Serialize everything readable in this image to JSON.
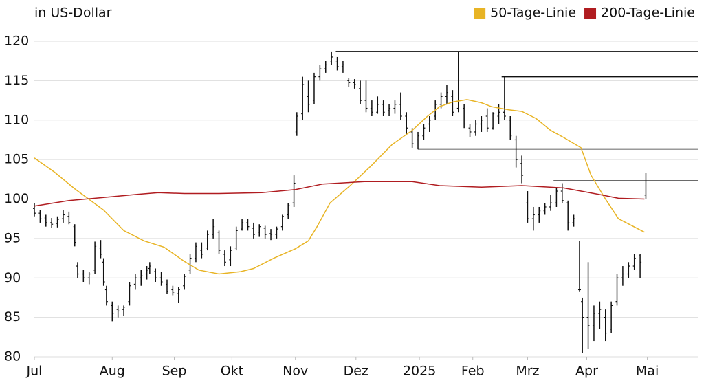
{
  "chart_data": {
    "type": "ohlc",
    "unit_label": "in US-Dollar",
    "ylim": [
      80,
      120
    ],
    "yticks": [
      80,
      85,
      90,
      95,
      100,
      105,
      110,
      115,
      120
    ],
    "grid": true,
    "xlim": [
      0,
      230
    ],
    "xticks": [
      {
        "value": 0,
        "label": "Jul"
      },
      {
        "value": 27,
        "label": "Aug"
      },
      {
        "value": 48.5,
        "label": "Sep"
      },
      {
        "value": 68.5,
        "label": "Okt"
      },
      {
        "value": 90.5,
        "label": "Nov"
      },
      {
        "value": 111.5,
        "label": "Dez"
      },
      {
        "value": 133.5,
        "label": "2025"
      },
      {
        "value": 152,
        "label": "Feb"
      },
      {
        "value": 171,
        "label": "Mrz"
      },
      {
        "value": 191.5,
        "label": "Apr"
      },
      {
        "value": 212.5,
        "label": "Mai"
      }
    ],
    "bar_color": "#111111",
    "legend": "top-right",
    "bars": [
      [
        0,
        98.8,
        99.5,
        97.8,
        98.2
      ],
      [
        2,
        98.2,
        98.6,
        97,
        97.5
      ],
      [
        4,
        97.6,
        98,
        96.5,
        97
      ],
      [
        6,
        97,
        97.6,
        96.3,
        96.8
      ],
      [
        8,
        96.9,
        97.8,
        96.4,
        97.4
      ],
      [
        10,
        97.5,
        98.6,
        97,
        98
      ],
      [
        12,
        97.8,
        98.4,
        96.8,
        97
      ],
      [
        14,
        96.5,
        96.8,
        94,
        94.5
      ],
      [
        15,
        91.5,
        92,
        90,
        90.5
      ],
      [
        17,
        90.5,
        91,
        89.5,
        90
      ],
      [
        19,
        90,
        90.8,
        89.2,
        90.5
      ],
      [
        21,
        91,
        94.6,
        90.5,
        94
      ],
      [
        23,
        93.8,
        94.8,
        92.5,
        93
      ],
      [
        24,
        92,
        92.5,
        89,
        89.5
      ],
      [
        25,
        88.5,
        89,
        86.5,
        87
      ],
      [
        27,
        86.5,
        87,
        84.5,
        85.5
      ],
      [
        29,
        86,
        86.5,
        85,
        85.8
      ],
      [
        31,
        86,
        86.5,
        85.2,
        86.3
      ],
      [
        33,
        87,
        89.5,
        86.5,
        89
      ],
      [
        35,
        89.2,
        90.5,
        88.5,
        90
      ],
      [
        37,
        90,
        91,
        89,
        90.3
      ],
      [
        39,
        90.5,
        91.5,
        89.8,
        91
      ],
      [
        40,
        91.2,
        92,
        90.5,
        91.5
      ],
      [
        42,
        90.8,
        91.2,
        89.5,
        90
      ],
      [
        44,
        90,
        90.8,
        89,
        89.5
      ],
      [
        46,
        89.2,
        89.8,
        88,
        88.3
      ],
      [
        48,
        88.5,
        89,
        87.8,
        88.2
      ],
      [
        50,
        88,
        88.8,
        86.8,
        88.5
      ],
      [
        52,
        89,
        90.5,
        88.5,
        90.2
      ],
      [
        54,
        91,
        93,
        90.5,
        92.5
      ],
      [
        56,
        92.5,
        94.5,
        92,
        94
      ],
      [
        58,
        93.5,
        94.5,
        92.5,
        93
      ],
      [
        60,
        93.8,
        96,
        93.5,
        95.5
      ],
      [
        62,
        95.5,
        97.5,
        95,
        96.5
      ],
      [
        64,
        95.8,
        96,
        93,
        93.5
      ],
      [
        66,
        93,
        93.5,
        91.5,
        92
      ],
      [
        68,
        92.3,
        94,
        91.5,
        93.5
      ],
      [
        70,
        93.8,
        96.5,
        93.5,
        96
      ],
      [
        72,
        96.2,
        97.5,
        96,
        97
      ],
      [
        74,
        97,
        97.5,
        96,
        96.5
      ],
      [
        76,
        96.3,
        97,
        95,
        95.5
      ],
      [
        78,
        95.8,
        96.8,
        95.2,
        96.5
      ],
      [
        80,
        96.3,
        96.6,
        95,
        95.5
      ],
      [
        82,
        95.6,
        96.2,
        94.8,
        95.5
      ],
      [
        84,
        95.5,
        96.5,
        95,
        96.2
      ],
      [
        86,
        96.5,
        98,
        96,
        97.8
      ],
      [
        88,
        98,
        99.5,
        97.5,
        99.2
      ],
      [
        90,
        99.5,
        103,
        99,
        102
      ],
      [
        91,
        108.5,
        111,
        108,
        110.5
      ],
      [
        93,
        110.8,
        115.5,
        110,
        114.5
      ],
      [
        95,
        113,
        115,
        111,
        112
      ],
      [
        97,
        112.5,
        116,
        112,
        115.5
      ],
      [
        99,
        115.5,
        117,
        115,
        116.5
      ],
      [
        101,
        116.5,
        117.5,
        116,
        117
      ],
      [
        103,
        117.5,
        118.7,
        117,
        118
      ],
      [
        105,
        117.5,
        118,
        116.3,
        116.8
      ],
      [
        107,
        116.8,
        117.5,
        116,
        117
      ],
      [
        109,
        115,
        115.3,
        114.2,
        114.8
      ],
      [
        111,
        114.8,
        115.2,
        114,
        114.5
      ],
      [
        113,
        114,
        115,
        112,
        112.5
      ],
      [
        115,
        112.5,
        115,
        111,
        111.5
      ],
      [
        117,
        111.5,
        112.5,
        110.5,
        111
      ],
      [
        119,
        111,
        113,
        110.8,
        112
      ],
      [
        121,
        112,
        112.5,
        110.5,
        111
      ],
      [
        123,
        111.2,
        112,
        110.5,
        111.5
      ],
      [
        125,
        111.5,
        112.5,
        110.8,
        112
      ],
      [
        127,
        112,
        113.5,
        110,
        110.5
      ],
      [
        129,
        110.5,
        111,
        108.2,
        109
      ],
      [
        131,
        108.5,
        109,
        106.5,
        107
      ],
      [
        133,
        107.5,
        108.5,
        106.3,
        108
      ],
      [
        135,
        108,
        109.5,
        107.5,
        109
      ],
      [
        137,
        109.5,
        110.5,
        108.5,
        110
      ],
      [
        139,
        110.5,
        112.5,
        110,
        112
      ],
      [
        141,
        112,
        113.5,
        111.5,
        113
      ],
      [
        143,
        113,
        114.5,
        112,
        113.5
      ],
      [
        145,
        113,
        113.8,
        110.5,
        111
      ],
      [
        147,
        111.5,
        118.7,
        111,
        112.5
      ],
      [
        149,
        111.5,
        112,
        109,
        109.5
      ],
      [
        151,
        109,
        109.5,
        107.8,
        108.5
      ],
      [
        153,
        108.5,
        110,
        108,
        109.5
      ],
      [
        155,
        109.5,
        110.5,
        108.5,
        110
      ],
      [
        157,
        110.5,
        111.5,
        108.5,
        109
      ],
      [
        159,
        109,
        111,
        108.8,
        110.8
      ],
      [
        161,
        110.5,
        112,
        109.5,
        111
      ],
      [
        163,
        111,
        115.5,
        110,
        110.5
      ],
      [
        165,
        110,
        110.5,
        107.5,
        108
      ],
      [
        167,
        107.5,
        108,
        104,
        105
      ],
      [
        169,
        104.5,
        105.5,
        102,
        103
      ],
      [
        171,
        99.5,
        101,
        97,
        97.5
      ],
      [
        173,
        97.5,
        99,
        96,
        98
      ],
      [
        175,
        98,
        99,
        97,
        98.5
      ],
      [
        177,
        98.5,
        99.5,
        98,
        99
      ],
      [
        179,
        99,
        100.5,
        98.5,
        99.5
      ],
      [
        181,
        99.5,
        101.5,
        99,
        101
      ],
      [
        183,
        101,
        102,
        99.5,
        99.8
      ],
      [
        185,
        99.5,
        99.8,
        96,
        97
      ],
      [
        187,
        97,
        98,
        96.5,
        97.5
      ],
      [
        189,
        88.5,
        94.7,
        88.3,
        88.5
      ],
      [
        190,
        87,
        87.5,
        80.5,
        85
      ],
      [
        192,
        85,
        92,
        81,
        84
      ],
      [
        194,
        84,
        86.5,
        82,
        85.5
      ],
      [
        196,
        85.5,
        87,
        83.5,
        86
      ],
      [
        198,
        85,
        86,
        82,
        83
      ],
      [
        200,
        83.5,
        87,
        83,
        86.5
      ],
      [
        202,
        87,
        90.5,
        86.5,
        90
      ],
      [
        204,
        90,
        91.5,
        89,
        90.5
      ],
      [
        206,
        90.5,
        92,
        90,
        91.5
      ],
      [
        208,
        91.5,
        93,
        91,
        92.5
      ],
      [
        210,
        92.8,
        93,
        90,
        92
      ],
      [
        212,
        100.5,
        103.3,
        100,
        102.3
      ]
    ],
    "series": [
      {
        "name": "50-Tage-Linie",
        "color": "#e8b425",
        "x": [
          0,
          7,
          14,
          24,
          31,
          38,
          45,
          52,
          57,
          64,
          71.5,
          76,
          83,
          90.5,
          95,
          98,
          102.5,
          109.5,
          117,
          124,
          131,
          136,
          140.5,
          145,
          150,
          155,
          158.5,
          164.5,
          169,
          174,
          179,
          183.5,
          189.5,
          193,
          198,
          202.5,
          211.5
        ],
        "values": [
          105.2,
          103.4,
          101.3,
          98.6,
          96,
          94.7,
          93.9,
          92.1,
          91,
          90.5,
          90.8,
          91.2,
          92.5,
          93.7,
          94.7,
          96.5,
          99.5,
          101.7,
          104.3,
          106.9,
          108.7,
          110.4,
          111.7,
          112.3,
          112.6,
          112.2,
          111.7,
          111.3,
          111.1,
          110.2,
          108.7,
          107.8,
          106.5,
          103,
          100,
          97.5,
          95.8
        ]
      },
      {
        "name": "200-Tage-Linie",
        "color": "#b01c20",
        "x": [
          0,
          12,
          24,
          36,
          43,
          52,
          64,
          78.7,
          90.5,
          100,
          114.4,
          131,
          140.5,
          155,
          169,
          183.5,
          195.5,
          202.5,
          211.5
        ],
        "values": [
          99.1,
          99.8,
          100.2,
          100.6,
          100.8,
          100.7,
          100.7,
          100.8,
          101.2,
          101.9,
          102.2,
          102.2,
          101.7,
          101.5,
          101.7,
          101.4,
          100.6,
          100.1,
          100
        ]
      }
    ],
    "levels": [
      {
        "value": 118.7,
        "start": 104.5,
        "color": "#111111"
      },
      {
        "value": 115.5,
        "start": 162,
        "color": "#111111"
      },
      {
        "value": 106.3,
        "start": 133,
        "color": "#999999"
      },
      {
        "value": 102.3,
        "start": 180,
        "color": "#111111"
      }
    ]
  }
}
